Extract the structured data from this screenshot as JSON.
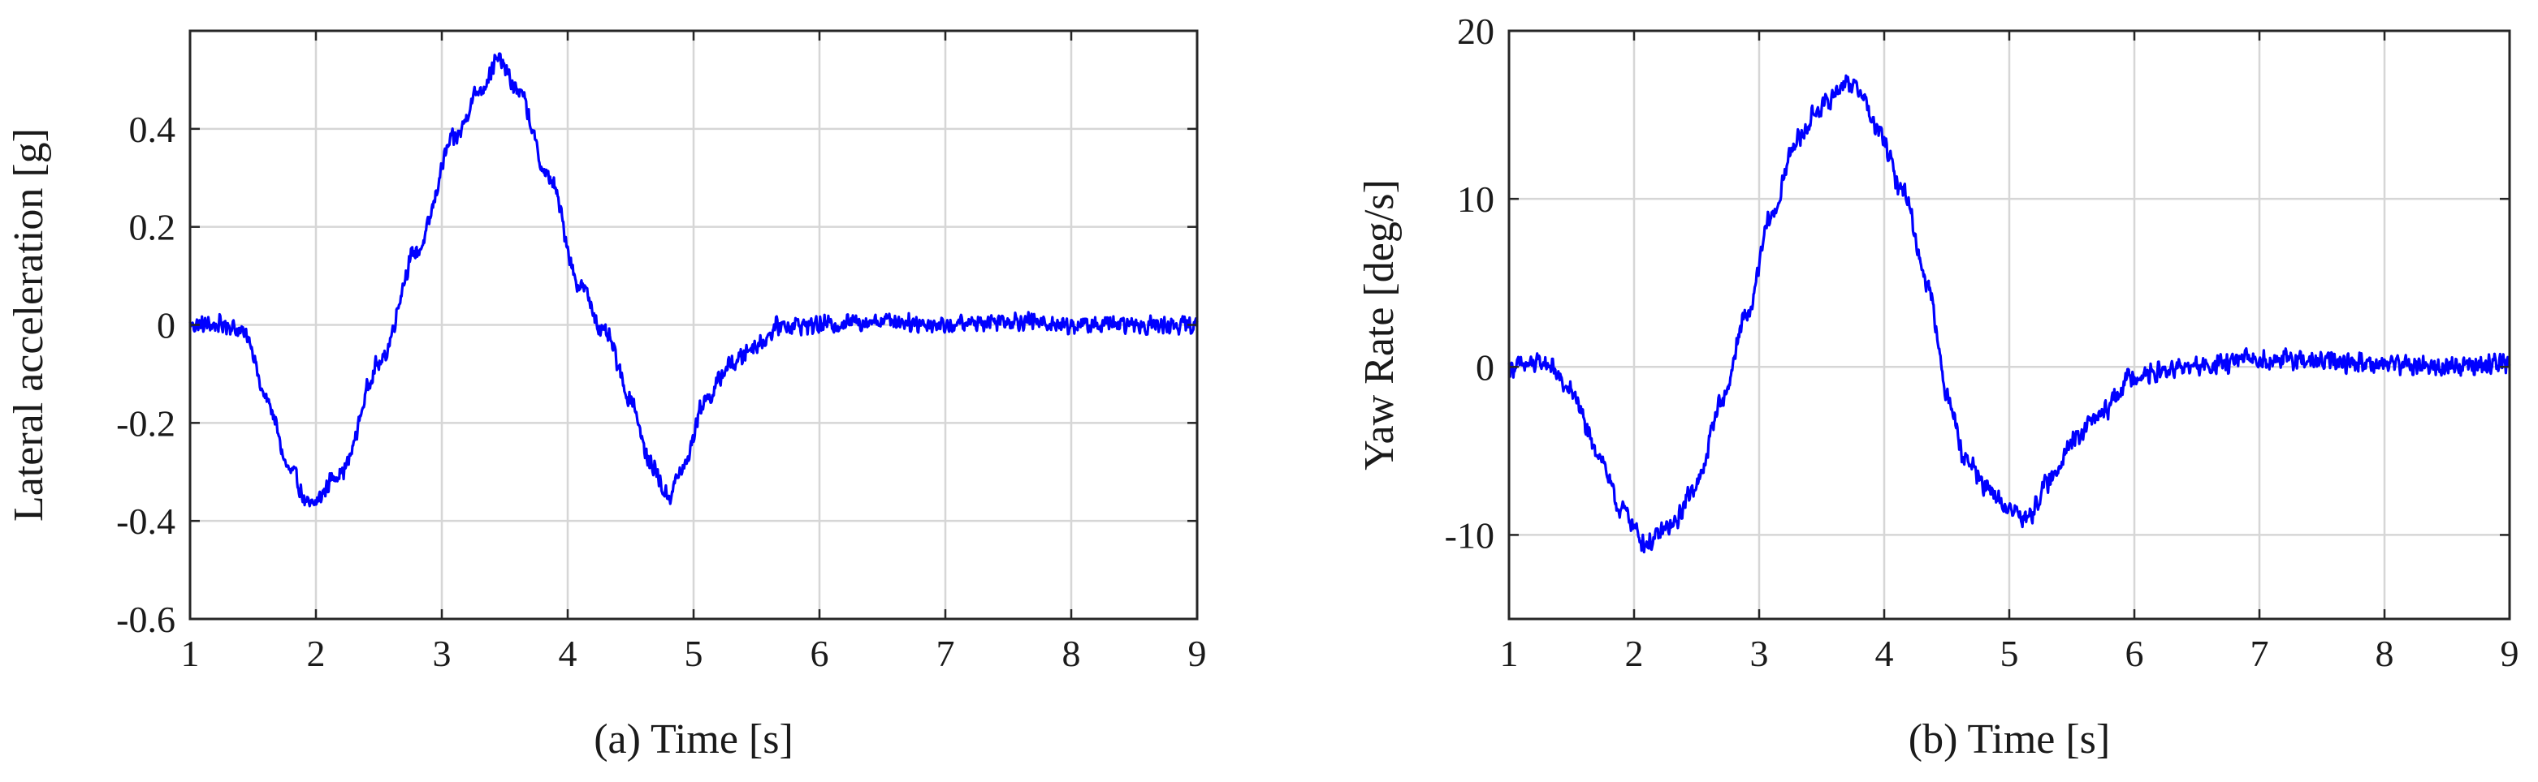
{
  "chart_data": [
    {
      "type": "line",
      "title": "",
      "xlabel": "(a) Time [s]",
      "ylabel": "Lateral acceleration [g]",
      "xlim": [
        1,
        9
      ],
      "ylim": [
        -0.6,
        0.6
      ],
      "xticks": [
        1,
        2,
        3,
        4,
        5,
        6,
        7,
        8,
        9
      ],
      "xtick_labels": [
        "1",
        "2",
        "3",
        "4",
        "5",
        "6",
        "7",
        "8",
        "9"
      ],
      "yticks": [
        -0.6,
        -0.4,
        -0.2,
        0,
        0.2,
        0.4
      ],
      "ytick_labels": [
        "-0.6",
        "-0.4",
        "-0.2",
        "0",
        "0.2",
        "0.4"
      ],
      "grid": true,
      "legend": "none",
      "color": "#0000ff",
      "series": [
        {
          "x": [
            1.0,
            1.3,
            1.45,
            1.6,
            1.8,
            1.95,
            2.2,
            2.5,
            2.8,
            3.1,
            3.3,
            3.45,
            3.6,
            3.85,
            4.1,
            4.3,
            4.5,
            4.65,
            4.8,
            4.9,
            5.1,
            5.3,
            5.5,
            5.7,
            6.0,
            6.5,
            7.0,
            7.5,
            8.0,
            8.5,
            9.0
          ],
          "y": [
            0.0,
            0.0,
            -0.02,
            -0.15,
            -0.3,
            -0.37,
            -0.3,
            -0.08,
            0.15,
            0.38,
            0.48,
            0.54,
            0.48,
            0.3,
            0.08,
            -0.02,
            -0.15,
            -0.28,
            -0.35,
            -0.3,
            -0.15,
            -0.08,
            -0.04,
            0.0,
            0.0,
            0.01,
            0.0,
            0.01,
            0.0,
            0.0,
            0.0
          ],
          "noise": 0.022
        }
      ]
    },
    {
      "type": "line",
      "title": "",
      "xlabel": "(b) Time [s]",
      "ylabel": "Yaw Rate [deg/s]",
      "xlim": [
        1,
        9
      ],
      "ylim": [
        -15,
        20
      ],
      "xticks": [
        1,
        2,
        3,
        4,
        5,
        6,
        7,
        8,
        9
      ],
      "xtick_labels": [
        "1",
        "2",
        "3",
        "4",
        "5",
        "6",
        "7",
        "8",
        "9"
      ],
      "yticks": [
        -10,
        0,
        10,
        20
      ],
      "ytick_labels": [
        "-10",
        "0",
        "10",
        "20"
      ],
      "grid": true,
      "legend": "none",
      "color": "#0000ff",
      "series": [
        {
          "x": [
            1.0,
            1.3,
            1.5,
            1.7,
            1.9,
            2.1,
            2.3,
            2.5,
            2.7,
            2.9,
            3.1,
            3.3,
            3.5,
            3.7,
            3.8,
            3.95,
            4.15,
            4.35,
            4.5,
            4.65,
            4.85,
            5.0,
            5.15,
            5.3,
            5.5,
            5.7,
            6.0,
            6.5,
            7.0,
            7.5,
            8.0,
            8.5,
            9.0
          ],
          "y": [
            0.0,
            0.2,
            -1.5,
            -5.0,
            -8.5,
            -10.5,
            -9.5,
            -7.0,
            -2.0,
            3.0,
            9.0,
            13.5,
            15.5,
            17.0,
            16.5,
            14.0,
            10.5,
            5.0,
            -1.5,
            -5.5,
            -7.5,
            -8.5,
            -9.0,
            -7.0,
            -4.5,
            -3.0,
            -0.5,
            0.0,
            0.5,
            0.3,
            0.2,
            0.0,
            0.2
          ],
          "noise": 0.7
        }
      ]
    }
  ]
}
